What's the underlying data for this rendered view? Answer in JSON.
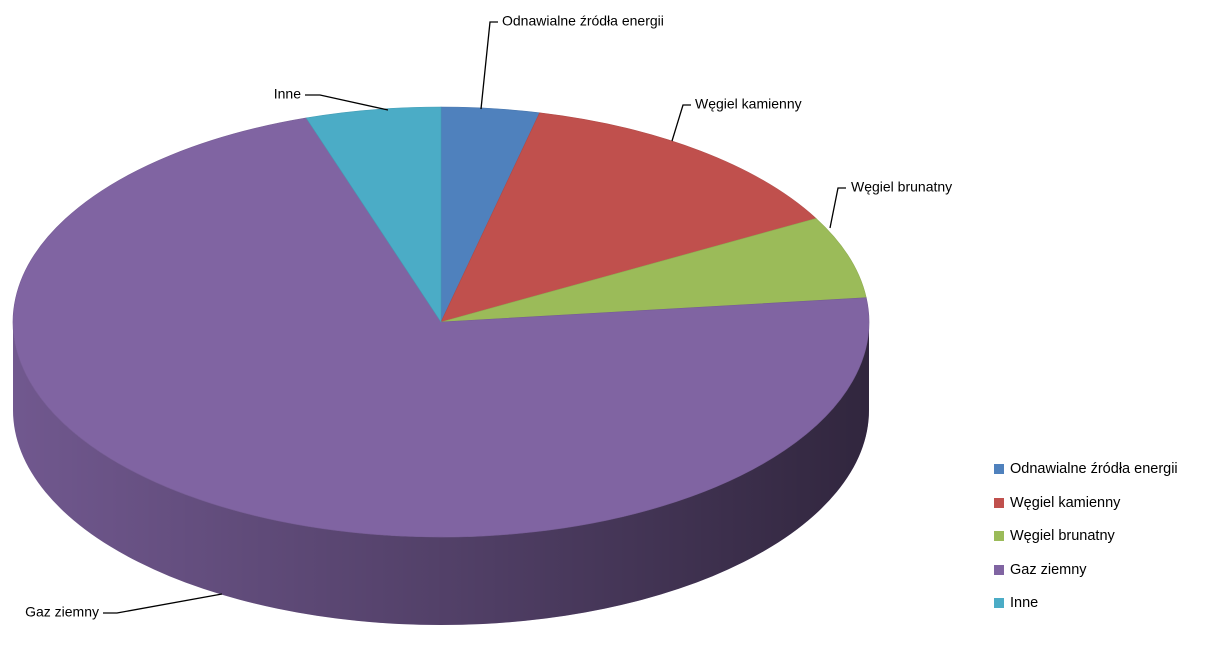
{
  "chart_data": {
    "type": "pie",
    "style": "3d",
    "categories": [
      "Odnawialne źródła energii",
      "Węgiel kamienny",
      "Węgiel brunatny",
      "Gaz ziemny",
      "Inne"
    ],
    "values": [
      3.7,
      13.3,
      6.2,
      71.7,
      5.1
    ],
    "colors": [
      "#4F81BD",
      "#C0504D",
      "#9BBB59",
      "#8064A2",
      "#4BACC6"
    ],
    "title": "",
    "show_category_labels": true,
    "legend_position": "right-bottom"
  }
}
